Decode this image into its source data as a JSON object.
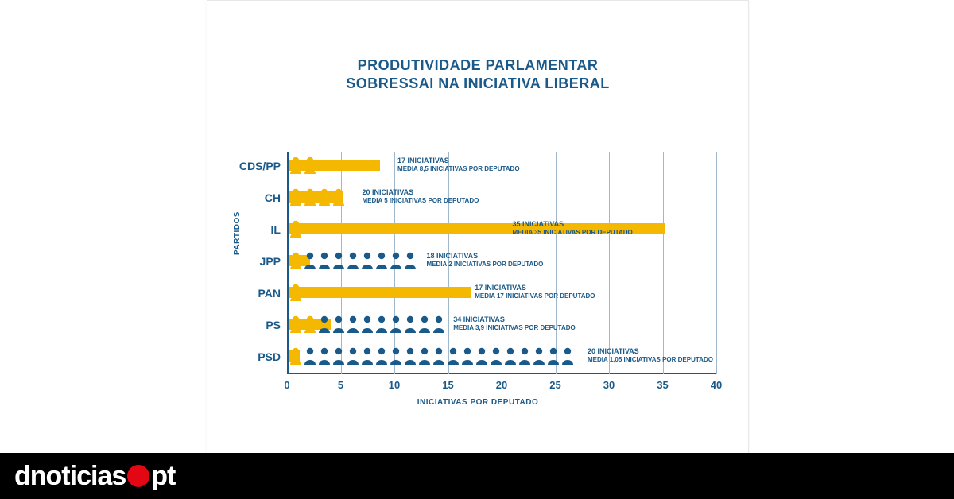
{
  "title_line1": "PRODUTIVIDADE PARLAMENTAR",
  "title_line2": "SOBRESSAI NA INICIATIVA LIBERAL",
  "y_axis_label": "PARTIDOS",
  "x_axis_label": "INICIATIVAS POR DEPUTADO",
  "x_ticks": [
    "0",
    "5",
    "10",
    "15",
    "20",
    "25",
    "30",
    "35",
    "40"
  ],
  "x_max": 40,
  "colors": {
    "title": "#1a5a8a",
    "grid": "#9fb8cc",
    "bar": "#f5b800",
    "icon_yellow": "#f5b800",
    "icon_blue": "#1a5a8a",
    "footer_bg": "#000000",
    "logo_dot": "#e30613"
  },
  "rows": [
    {
      "label": "CDS/PP",
      "iniciativas": 17,
      "media": 8.5,
      "ann_top": "17 INICIATIVAS",
      "ann_sub": "MEDIA 8,5 INICIATIVAS POR DEPUTADO",
      "ann_left_units": 10.3,
      "bar_units": 8.5,
      "icons": [
        {
          "c": "y"
        },
        {
          "c": "y"
        }
      ]
    },
    {
      "label": "CH",
      "iniciativas": 20,
      "media": 5,
      "ann_top": "20 INICIATIVAS",
      "ann_sub": "MEDIA 5 INICIATIVAS POR DEPUTADO",
      "ann_left_units": 7,
      "bar_units": 5,
      "icons": [
        {
          "c": "y"
        },
        {
          "c": "y"
        },
        {
          "c": "y"
        },
        {
          "c": "y"
        }
      ]
    },
    {
      "label": "IL",
      "iniciativas": 35,
      "media": 35,
      "ann_top": "35 INICIATIVAS",
      "ann_sub": "MEDIA 35 INICIATIVAS POR DEPUTADO",
      "ann_left_units": 21,
      "bar_units": 35,
      "icons": [
        {
          "c": "y"
        }
      ]
    },
    {
      "label": "JPP",
      "iniciativas": 18,
      "media": 2,
      "ann_top": "18 INICIATIVAS",
      "ann_sub": "MEDIA 2 INICIATIVAS POR DEPUTADO",
      "ann_left_units": 13,
      "bar_units": 2,
      "icons": [
        {
          "c": "y"
        },
        {
          "c": "b"
        },
        {
          "c": "b"
        },
        {
          "c": "b"
        },
        {
          "c": "b"
        },
        {
          "c": "b"
        },
        {
          "c": "b"
        },
        {
          "c": "b"
        },
        {
          "c": "b"
        }
      ]
    },
    {
      "label": "PAN",
      "iniciativas": 17,
      "media": 17,
      "ann_top": "17 INICIATIVAS",
      "ann_sub": "MEDIA 17 INICIATIVAS POR DEPUTADO",
      "ann_left_units": 17.5,
      "bar_units": 17,
      "icons": [
        {
          "c": "y"
        }
      ]
    },
    {
      "label": "PS",
      "iniciativas": 34,
      "media": 3.9,
      "ann_top": "34 INICIATIVAS",
      "ann_sub": "MEDIA 3,9 INICIATIVAS POR DEPUTADO",
      "ann_left_units": 15.5,
      "bar_units": 3.9,
      "icons": [
        {
          "c": "y"
        },
        {
          "c": "y"
        },
        {
          "c": "b"
        },
        {
          "c": "b"
        },
        {
          "c": "b"
        },
        {
          "c": "b"
        },
        {
          "c": "b"
        },
        {
          "c": "b"
        },
        {
          "c": "b"
        },
        {
          "c": "b"
        },
        {
          "c": "b"
        }
      ]
    },
    {
      "label": "PSD",
      "iniciativas": 20,
      "media": 1.05,
      "ann_top": "20 INICIATIVAS",
      "ann_sub": "MEDIA 1,05 INICIATIVAS POR DEPUTADO",
      "ann_left_units": 28,
      "bar_units": 1.05,
      "icons": [
        {
          "c": "y"
        },
        {
          "c": "b"
        },
        {
          "c": "b"
        },
        {
          "c": "b"
        },
        {
          "c": "b"
        },
        {
          "c": "b"
        },
        {
          "c": "b"
        },
        {
          "c": "b"
        },
        {
          "c": "b"
        },
        {
          "c": "b"
        },
        {
          "c": "b"
        },
        {
          "c": "b"
        },
        {
          "c": "b"
        },
        {
          "c": "b"
        },
        {
          "c": "b"
        },
        {
          "c": "b"
        },
        {
          "c": "b"
        },
        {
          "c": "b"
        },
        {
          "c": "b"
        },
        {
          "c": "b"
        }
      ]
    }
  ],
  "footer": {
    "logo_prefix": "dnoticias",
    "logo_suffix": "pt"
  }
}
